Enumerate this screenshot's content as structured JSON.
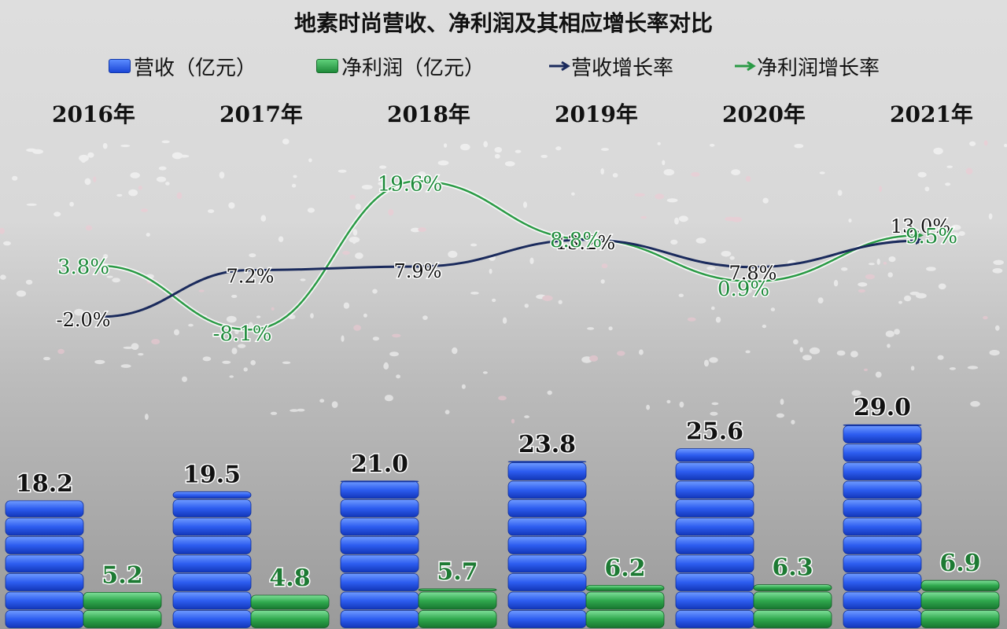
{
  "chart_data": {
    "type": "bar",
    "title": "地素时尚营收、净利润及其相应增长率对比",
    "categories": [
      "2016年",
      "2017年",
      "2018年",
      "2019年",
      "2020年",
      "2021年"
    ],
    "series": [
      {
        "name": "营收（亿元）",
        "type": "bar",
        "values": [
          18.2,
          19.5,
          21.0,
          23.8,
          25.6,
          29.0
        ],
        "color": "#1f4fe0"
      },
      {
        "name": "净利润（亿元）",
        "type": "bar",
        "values": [
          5.2,
          4.8,
          5.7,
          6.2,
          6.3,
          6.9
        ],
        "color": "#2a9a45"
      },
      {
        "name": "营收增长率",
        "type": "line",
        "values": [
          -2.0,
          7.2,
          7.9,
          13.2,
          7.8,
          13.0
        ],
        "labels": [
          "-2.0%",
          "7.2%",
          "7.9%",
          "13.2%",
          "7.8%",
          "13.0%"
        ],
        "color": "#1a2a5c"
      },
      {
        "name": "净利润增长率",
        "type": "line",
        "values": [
          3.8,
          -8.1,
          19.6,
          8.8,
          0.9,
          9.5
        ],
        "labels": [
          "3.8%",
          "-8.1%",
          "19.6%",
          "8.8%",
          "0.9%",
          "9.5%"
        ],
        "color": "#2a9a45"
      }
    ],
    "bar_value_labels": {
      "revenue": [
        "18.2",
        "19.5",
        "21.0",
        "23.8",
        "25.6",
        "29.0"
      ],
      "profit": [
        "5.2",
        "4.8",
        "5.7",
        "6.2",
        "6.3",
        "6.9"
      ]
    },
    "grid": false,
    "legend_position": "top"
  }
}
